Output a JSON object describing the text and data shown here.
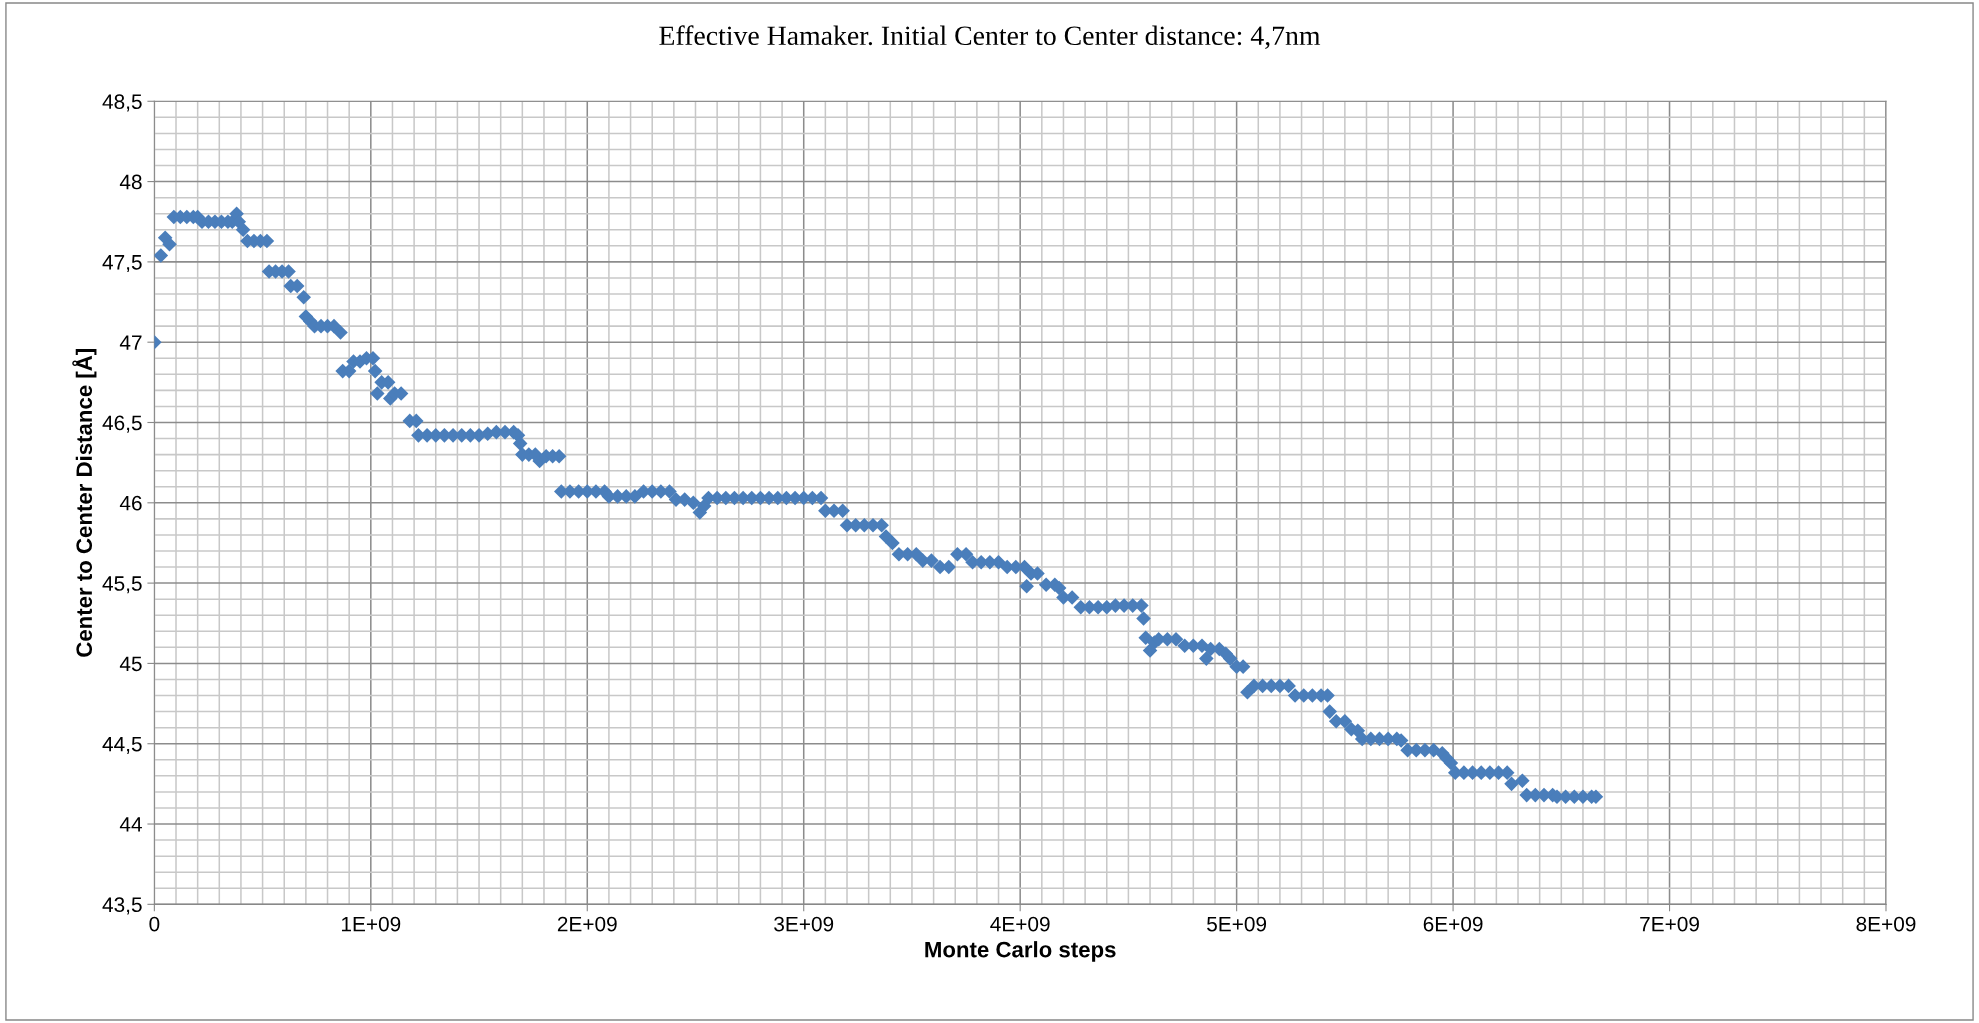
{
  "chart_data": {
    "type": "scatter",
    "title": "Effective Hamaker. Initial Center to Center distance: 4,7nm",
    "xlabel": "Monte Carlo steps",
    "ylabel": "Center to Center Distance [Å]",
    "xlim": [
      0,
      8000000000.0
    ],
    "ylim": [
      43.5,
      48.5
    ],
    "xticks": [
      0,
      {
        "value": 1000000000.0,
        "label": "1E+09"
      },
      {
        "value": 2000000000.0,
        "label": "2E+09"
      },
      {
        "value": 3000000000.0,
        "label": "3E+09"
      },
      {
        "value": 4000000000.0,
        "label": "4E+09"
      },
      {
        "value": 5000000000.0,
        "label": "5E+09"
      },
      {
        "value": 6000000000.0,
        "label": "6E+09"
      },
      {
        "value": 7000000000.0,
        "label": "7E+09"
      },
      {
        "value": 8000000000.0,
        "label": "8E+09"
      }
    ],
    "yticks": [
      {
        "value": 43.5,
        "label": "43,5"
      },
      44,
      {
        "value": 44.5,
        "label": "44,5"
      },
      45,
      {
        "value": 45.5,
        "label": "45,5"
      },
      46,
      {
        "value": 46.5,
        "label": "46,5"
      },
      47,
      {
        "value": 47.5,
        "label": "47,5"
      },
      48,
      {
        "value": 48.5,
        "label": "48,5"
      }
    ],
    "grid": true,
    "marker": "diamond",
    "legend": false,
    "series": [
      {
        "color": "#4a7ebb",
        "x": [
          0,
          30000000.0,
          50000000.0,
          70000000.0,
          90000000.0,
          120000000.0,
          150000000.0,
          180000000.0,
          200000000.0,
          220000000.0,
          250000000.0,
          280000000.0,
          310000000.0,
          340000000.0,
          360000000.0,
          380000000.0,
          390000000.0,
          410000000.0,
          430000000.0,
          460000000.0,
          490000000.0,
          520000000.0,
          530000000.0,
          560000000.0,
          590000000.0,
          620000000.0,
          630000000.0,
          660000000.0,
          690000000.0,
          700000000.0,
          720000000.0,
          740000000.0,
          770000000.0,
          800000000.0,
          830000000.0,
          860000000.0,
          870000000.0,
          900000000.0,
          920000000.0,
          950000000.0,
          980000000.0,
          1010000000.0,
          1020000000.0,
          1030000000.0,
          1050000000.0,
          1080000000.0,
          1090000000.0,
          1110000000.0,
          1140000000.0,
          1180000000.0,
          1210000000.0,
          1220000000.0,
          1260000000.0,
          1300000000.0,
          1340000000.0,
          1380000000.0,
          1420000000.0,
          1460000000.0,
          1500000000.0,
          1540000000.0,
          1580000000.0,
          1620000000.0,
          1660000000.0,
          1680000000.0,
          1690000000.0,
          1700000000.0,
          1730000000.0,
          1760000000.0,
          1780000000.0,
          1810000000.0,
          1840000000.0,
          1870000000.0,
          1880000000.0,
          1920000000.0,
          1960000000.0,
          2000000000.0,
          2040000000.0,
          2080000000.0,
          2100000000.0,
          2140000000.0,
          2180000000.0,
          2220000000.0,
          2260000000.0,
          2300000000.0,
          2340000000.0,
          2380000000.0,
          2410000000.0,
          2450000000.0,
          2490000000.0,
          2520000000.0,
          2540000000.0,
          2560000000.0,
          2600000000.0,
          2640000000.0,
          2680000000.0,
          2720000000.0,
          2760000000.0,
          2800000000.0,
          2840000000.0,
          2880000000.0,
          2920000000.0,
          2960000000.0,
          3000000000.0,
          3040000000.0,
          3080000000.0,
          3100000000.0,
          3140000000.0,
          3180000000.0,
          3200000000.0,
          3240000000.0,
          3280000000.0,
          3320000000.0,
          3360000000.0,
          3380000000.0,
          3410000000.0,
          3440000000.0,
          3480000000.0,
          3520000000.0,
          3550000000.0,
          3590000000.0,
          3630000000.0,
          3670000000.0,
          3710000000.0,
          3750000000.0,
          3780000000.0,
          3820000000.0,
          3860000000.0,
          3900000000.0,
          3940000000.0,
          3980000000.0,
          4020000000.0,
          4030000000.0,
          4050000000.0,
          4080000000.0,
          4120000000.0,
          4160000000.0,
          4180000000.0,
          4200000000.0,
          4240000000.0,
          4280000000.0,
          4320000000.0,
          4360000000.0,
          4400000000.0,
          4440000000.0,
          4480000000.0,
          4520000000.0,
          4560000000.0,
          4570000000.0,
          4580000000.0,
          4600000000.0,
          4620000000.0,
          4640000000.0,
          4680000000.0,
          4720000000.0,
          4760000000.0,
          4800000000.0,
          4840000000.0,
          4860000000.0,
          4880000000.0,
          4920000000.0,
          4950000000.0,
          4970000000.0,
          5000000000.0,
          5030000000.0,
          5050000000.0,
          5080000000.0,
          5120000000.0,
          5160000000.0,
          5200000000.0,
          5240000000.0,
          5270000000.0,
          5310000000.0,
          5350000000.0,
          5390000000.0,
          5420000000.0,
          5430000000.0,
          5460000000.0,
          5500000000.0,
          5530000000.0,
          5560000000.0,
          5580000000.0,
          5620000000.0,
          5660000000.0,
          5700000000.0,
          5740000000.0,
          5760000000.0,
          5790000000.0,
          5830000000.0,
          5870000000.0,
          5910000000.0,
          5950000000.0,
          5970000000.0,
          5990000000.0,
          6010000000.0,
          6050000000.0,
          6090000000.0,
          6130000000.0,
          6170000000.0,
          6210000000.0,
          6250000000.0,
          6270000000.0,
          6320000000.0,
          6340000000.0,
          6380000000.0,
          6420000000.0,
          6460000000.0,
          6480000000.0,
          6520000000.0,
          6560000000.0,
          6600000000.0,
          6640000000.0,
          6660000000.0
        ],
        "values": [
          47.0,
          47.54,
          47.65,
          47.61,
          47.78,
          47.78,
          47.78,
          47.78,
          47.78,
          47.75,
          47.75,
          47.75,
          47.75,
          47.75,
          47.75,
          47.8,
          47.75,
          47.7,
          47.63,
          47.63,
          47.63,
          47.63,
          47.44,
          47.44,
          47.44,
          47.44,
          47.35,
          47.35,
          47.28,
          47.16,
          47.13,
          47.1,
          47.1,
          47.1,
          47.1,
          47.06,
          46.82,
          46.82,
          46.88,
          46.88,
          46.9,
          46.9,
          46.82,
          46.68,
          46.75,
          46.75,
          46.65,
          46.68,
          46.68,
          46.51,
          46.51,
          46.42,
          46.42,
          46.42,
          46.42,
          46.42,
          46.42,
          46.42,
          46.42,
          46.43,
          46.44,
          46.44,
          46.44,
          46.42,
          46.37,
          46.3,
          46.3,
          46.3,
          46.26,
          46.29,
          46.29,
          46.29,
          46.07,
          46.07,
          46.07,
          46.07,
          46.07,
          46.07,
          46.04,
          46.04,
          46.04,
          46.04,
          46.07,
          46.07,
          46.07,
          46.07,
          46.02,
          46.02,
          46.0,
          45.94,
          45.98,
          46.03,
          46.03,
          46.03,
          46.03,
          46.03,
          46.03,
          46.03,
          46.03,
          46.03,
          46.03,
          46.03,
          46.03,
          46.03,
          46.03,
          45.95,
          45.95,
          45.95,
          45.86,
          45.86,
          45.86,
          45.86,
          45.86,
          45.79,
          45.75,
          45.68,
          45.68,
          45.68,
          45.64,
          45.64,
          45.6,
          45.6,
          45.68,
          45.68,
          45.63,
          45.63,
          45.63,
          45.63,
          45.6,
          45.6,
          45.6,
          45.48,
          45.56,
          45.56,
          45.49,
          45.49,
          45.47,
          45.41,
          45.41,
          45.35,
          45.35,
          45.35,
          45.35,
          45.36,
          45.36,
          45.36,
          45.36,
          45.28,
          45.16,
          45.08,
          45.13,
          45.15,
          45.15,
          45.15,
          45.11,
          45.11,
          45.11,
          45.03,
          45.09,
          45.09,
          45.06,
          45.03,
          44.98,
          44.98,
          44.82,
          44.86,
          44.86,
          44.86,
          44.86,
          44.86,
          44.8,
          44.8,
          44.8,
          44.8,
          44.8,
          44.7,
          44.64,
          44.64,
          44.59,
          44.58,
          44.53,
          44.53,
          44.53,
          44.53,
          44.53,
          44.52,
          44.46,
          44.46,
          44.46,
          44.46,
          44.44,
          44.41,
          44.38,
          44.32,
          44.32,
          44.32,
          44.32,
          44.32,
          44.32,
          44.32,
          44.25,
          44.27,
          44.18,
          44.18,
          44.18,
          44.18,
          44.17,
          44.17,
          44.17,
          44.17,
          44.17,
          44.17
        ]
      }
    ]
  }
}
